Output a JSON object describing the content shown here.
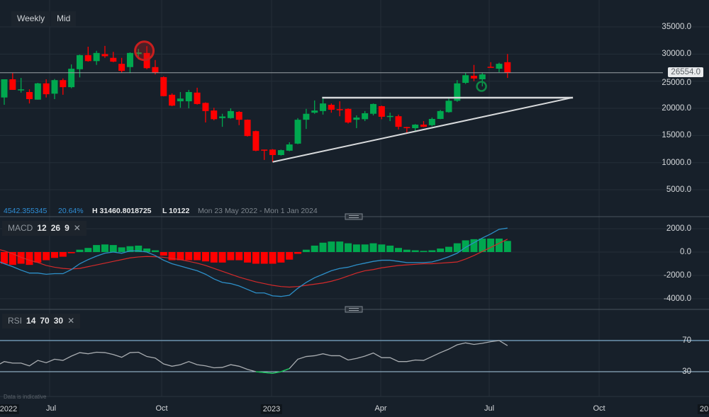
{
  "toolbar": {
    "timeframe": "Weekly",
    "price_type": "Mid"
  },
  "info_bar": {
    "value": "4542.355345",
    "change_pct": "20.64%",
    "high": "H 31460.8018725",
    "low": "L 10122",
    "range": "Mon 23 May 2022 - Mon 1 Jan 2024"
  },
  "price_tag": "26554.0",
  "macd_label": {
    "name": "MACD",
    "p1": "12",
    "p2": "26",
    "p3": "9",
    "close": "✕"
  },
  "rsi_label": {
    "name": "RSI",
    "p1": "14",
    "p2": "70",
    "p3": "30",
    "close": "✕"
  },
  "footnote": "Data is indicative",
  "x_labels": [
    "2022",
    "Jul",
    "Oct",
    "2023",
    "Apr",
    "Jul",
    "Oct",
    "20"
  ],
  "colors": {
    "up": "#00a84f",
    "down": "#ff0000",
    "macd": "#2d8fc8",
    "signal": "#d42a2a",
    "rsi": "#a9adb1",
    "background": "#17202a"
  },
  "chart_data": [
    {
      "type": "candlestick",
      "title": "Weekly price",
      "ylim": [
        0,
        37500
      ],
      "y_ticks": [
        "35000.0",
        "30000.0",
        "25000.0",
        "20000.0",
        "15000.0",
        "10000.0",
        "5000.0"
      ],
      "y_tick_values": [
        35000,
        30000,
        25000,
        20000,
        15000,
        10000,
        5000
      ],
      "last_price": 26554,
      "ohlc": [
        [
          22000,
          25350,
          20650,
          25350
        ],
        [
          25350,
          26500,
          23400,
          23400
        ],
        [
          23400,
          25600,
          22900,
          23500
        ],
        [
          23000,
          23500,
          20900,
          21700
        ],
        [
          21600,
          24700,
          21600,
          24600
        ],
        [
          24600,
          25350,
          22000,
          22600
        ],
        [
          22700,
          25400,
          21700,
          25200
        ],
        [
          25200,
          25500,
          22500,
          23900
        ],
        [
          23900,
          28100,
          23700,
          27300
        ],
        [
          27200,
          29900,
          25700,
          29800
        ],
        [
          29800,
          31350,
          28600,
          28700
        ],
        [
          28700,
          30600,
          28000,
          30200
        ],
        [
          30000,
          31500,
          29300,
          29600
        ],
        [
          29300,
          30400,
          28500,
          28600
        ],
        [
          28200,
          29300,
          26600,
          26900
        ],
        [
          27600,
          30300,
          26500,
          30200
        ],
        [
          30000,
          30950,
          29000,
          30300
        ],
        [
          30200,
          31460,
          27200,
          27400
        ],
        [
          27600,
          28900,
          26250,
          26600
        ],
        [
          25750,
          25900,
          22200,
          22250
        ],
        [
          22500,
          22750,
          20400,
          20500
        ],
        [
          21300,
          23000,
          20100,
          21800
        ],
        [
          21300,
          23400,
          20000,
          23000
        ],
        [
          22900,
          23800,
          20700,
          20800
        ],
        [
          21000,
          21100,
          17400,
          19500
        ],
        [
          19600,
          20100,
          17800,
          18000
        ],
        [
          18200,
          19000,
          16600,
          18500
        ],
        [
          18200,
          20000,
          18100,
          19500
        ],
        [
          19350,
          19500,
          16900,
          17900
        ],
        [
          17900,
          17950,
          14800,
          14900
        ],
        [
          15800,
          15900,
          12100,
          12200
        ],
        [
          12400,
          12400,
          10500,
          12200
        ],
        [
          12400,
          12500,
          10122,
          11400
        ],
        [
          11400,
          12400,
          11300,
          12300
        ],
        [
          12200,
          13750,
          12100,
          13350
        ],
        [
          13500,
          18200,
          13400,
          17900
        ],
        [
          17900,
          19900,
          16200,
          19000
        ],
        [
          19200,
          21450,
          19000,
          19600
        ],
        [
          19500,
          21800,
          18850,
          20900
        ],
        [
          20650,
          20900,
          19200,
          19750
        ],
        [
          19850,
          21300,
          18550,
          19650
        ],
        [
          19900,
          20000,
          17200,
          17400
        ],
        [
          17900,
          18700,
          16350,
          18300
        ],
        [
          18000,
          19500,
          17650,
          19100
        ],
        [
          19000,
          20900,
          18700,
          20800
        ],
        [
          20400,
          20500,
          18000,
          18450
        ],
        [
          18400,
          19200,
          17650,
          18600
        ],
        [
          18550,
          18850,
          16100,
          16600
        ],
        [
          16550,
          16600,
          15400,
          16450
        ],
        [
          16350,
          17100,
          15800,
          17000
        ],
        [
          17000,
          17650,
          16550,
          16600
        ],
        [
          16900,
          18300,
          16700,
          18050
        ],
        [
          18050,
          19700,
          18000,
          19500
        ],
        [
          19300,
          21800,
          19200,
          21400
        ],
        [
          21400,
          25200,
          21200,
          24600
        ],
        [
          24700,
          26600,
          24500,
          26100
        ],
        [
          26000,
          28000,
          25000,
          25500
        ],
        [
          25350,
          26600,
          24050,
          26250
        ],
        [
          27650,
          28500,
          27500,
          27550
        ],
        [
          27300,
          28400,
          26650,
          28200
        ],
        [
          28500,
          30000,
          25600,
          26554
        ]
      ],
      "annotations": {
        "support_trendline": [
          [
            32,
            10122
          ],
          [
            67.8,
            22000
          ]
        ],
        "resistance_line": [
          [
            37.9,
            21960
          ],
          [
            67.8,
            21960
          ]
        ],
        "red_circle": [
          16.7,
          30600
        ],
        "green_circle": [
          56.9,
          24050
        ]
      }
    },
    {
      "type": "line",
      "title": "MACD 12 26 9",
      "ylim": [
        -4800,
        2700
      ],
      "y_ticks": [
        "2000.0",
        "0.0",
        "-2000.0",
        "-4000.0"
      ],
      "y_tick_values": [
        2000,
        0,
        -2000,
        -4000
      ],
      "series": [
        {
          "name": "MACD",
          "values": [
            -1000,
            -1250,
            -1550,
            -1800,
            -1800,
            -1900,
            -1850,
            -1850,
            -1500,
            -1000,
            -650,
            -350,
            -100,
            0,
            -100,
            100,
            100,
            0,
            -300,
            -700,
            -1000,
            -1200,
            -1400,
            -1600,
            -1900,
            -2300,
            -2600,
            -2700,
            -2900,
            -3200,
            -3500,
            -3500,
            -3750,
            -3800,
            -3700,
            -3100,
            -2600,
            -2200,
            -1900,
            -1600,
            -1400,
            -1300,
            -1100,
            -950,
            -800,
            -700,
            -700,
            -800,
            -900,
            -900,
            -900,
            -850,
            -650,
            -400,
            -100,
            400,
            800,
            1200,
            1550,
            1950,
            2050
          ]
        },
        {
          "name": "Signal",
          "values": [
            100,
            -150,
            -450,
            -700,
            -900,
            -1150,
            -1300,
            -1400,
            -1450,
            -1400,
            -1250,
            -1100,
            -950,
            -800,
            -650,
            -500,
            -420,
            -380,
            -400,
            -450,
            -550,
            -650,
            -800,
            -950,
            -1150,
            -1400,
            -1650,
            -1900,
            -2150,
            -2350,
            -2550,
            -2700,
            -2850,
            -2950,
            -3000,
            -2950,
            -2850,
            -2750,
            -2650,
            -2500,
            -2300,
            -2050,
            -1800,
            -1600,
            -1500,
            -1350,
            -1250,
            -1150,
            -1100,
            -1050,
            -1000,
            -1000,
            -950,
            -900,
            -850,
            -600,
            -300,
            50,
            400,
            750,
            1100
          ]
        },
        {
          "name": "Histogram",
          "values": [
            -1000,
            -1100,
            -1000,
            -1100,
            -900,
            -700,
            -500,
            -400,
            -100,
            200,
            350,
            600,
            650,
            600,
            400,
            500,
            550,
            300,
            150,
            -300,
            -700,
            -700,
            -700,
            -700,
            -800,
            -900,
            -900,
            -700,
            -700,
            -900,
            -1000,
            -1000,
            -1000,
            -900,
            -650,
            -150,
            200,
            550,
            800,
            900,
            900,
            750,
            650,
            650,
            750,
            650,
            550,
            350,
            200,
            150,
            100,
            150,
            300,
            450,
            750,
            1000,
            1100,
            1150,
            1150,
            1150,
            950
          ]
        }
      ]
    },
    {
      "type": "line",
      "title": "RSI 14 70 30",
      "ylim": [
        10,
        90
      ],
      "y_ticks": [
        "70",
        "30"
      ],
      "y_tick_values": [
        70,
        30
      ],
      "series": [
        {
          "name": "RSI",
          "values": [
            43,
            41,
            41,
            37.5,
            44.5,
            41.5,
            46,
            44.5,
            50,
            54.5,
            53,
            55,
            54.5,
            52,
            48.5,
            54.5,
            55,
            49.5,
            47.5,
            40,
            37,
            39,
            43,
            39,
            37.5,
            35,
            35.5,
            39,
            37,
            33,
            30,
            29,
            28,
            30,
            34,
            46,
            49.5,
            50.5,
            53,
            50.5,
            50.5,
            45,
            47,
            50,
            54,
            48,
            48,
            43,
            43,
            45,
            44.5,
            49.5,
            54.5,
            59,
            64.5,
            67,
            65,
            66.5,
            68.5,
            70,
            63.5
          ]
        }
      ]
    }
  ]
}
